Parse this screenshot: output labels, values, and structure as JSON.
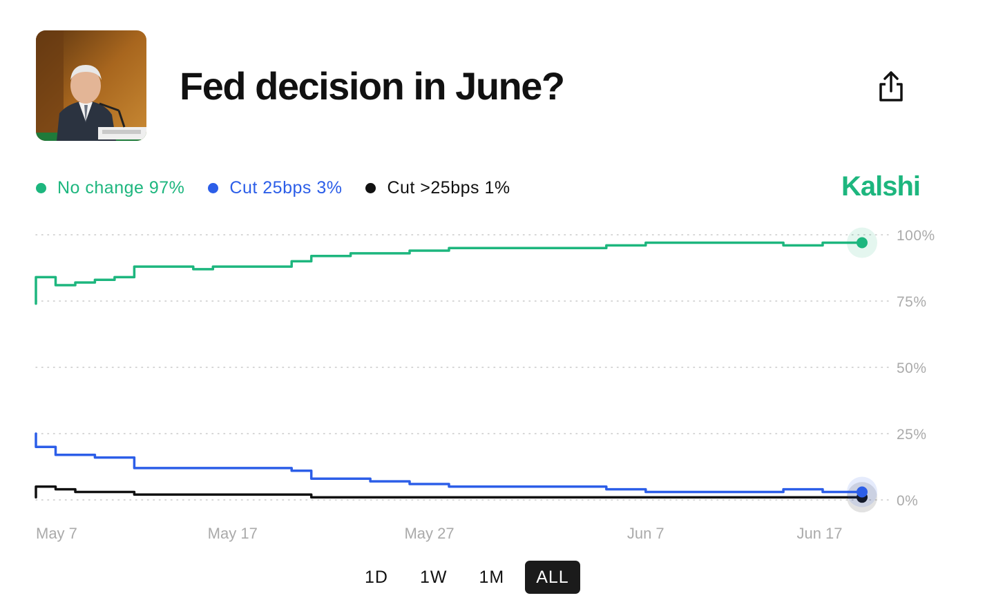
{
  "header": {
    "title": "Fed decision in June?",
    "brand": "Kalshi"
  },
  "colors": {
    "no_change": "#1db67e",
    "cut_25": "#2c5ee8",
    "cut_gt25": "#111111",
    "brand": "#1db67e",
    "axis_text": "#aaaaaa",
    "grid": "#c8c8c8"
  },
  "legend": [
    {
      "label": "No change 97%",
      "color": "#1db67e"
    },
    {
      "label": "Cut 25bps 3%",
      "color": "#2c5ee8"
    },
    {
      "label": "Cut >25bps 1%",
      "color": "#111111"
    }
  ],
  "range_buttons": [
    {
      "label": "1D",
      "active": false
    },
    {
      "label": "1W",
      "active": false
    },
    {
      "label": "1M",
      "active": false
    },
    {
      "label": "ALL",
      "active": true
    }
  ],
  "chart_data": {
    "type": "line",
    "title": "",
    "xlabel": "",
    "ylabel": "",
    "x_ticks": [
      "May 7",
      "May 17",
      "May 27",
      "Jun 7",
      "Jun 17"
    ],
    "y_ticks": [
      "0%",
      "25%",
      "50%",
      "75%",
      "100%"
    ],
    "ylim": [
      0,
      100
    ],
    "xlim": [
      "2024-05-07",
      "2024-06-18"
    ],
    "grid": true,
    "grid_style": "dotted",
    "legend_position": "top-left",
    "series": [
      {
        "name": "No change",
        "color": "#1db67e",
        "points": [
          [
            "2024-05-07",
            74
          ],
          [
            "2024-05-07",
            84
          ],
          [
            "2024-05-08",
            81
          ],
          [
            "2024-05-09",
            82
          ],
          [
            "2024-05-10",
            83
          ],
          [
            "2024-05-11",
            84
          ],
          [
            "2024-05-12",
            84
          ],
          [
            "2024-05-12",
            88
          ],
          [
            "2024-05-13",
            88
          ],
          [
            "2024-05-14",
            88
          ],
          [
            "2024-05-15",
            87
          ],
          [
            "2024-05-16",
            88
          ],
          [
            "2024-05-17",
            88
          ],
          [
            "2024-05-18",
            88
          ],
          [
            "2024-05-19",
            88
          ],
          [
            "2024-05-20",
            89
          ],
          [
            "2024-05-20",
            90
          ],
          [
            "2024-05-21",
            90
          ],
          [
            "2024-05-21",
            92
          ],
          [
            "2024-05-22",
            92
          ],
          [
            "2024-05-23",
            93
          ],
          [
            "2024-05-24",
            93
          ],
          [
            "2024-05-25",
            93
          ],
          [
            "2024-05-26",
            94
          ],
          [
            "2024-05-27",
            94
          ],
          [
            "2024-05-28",
            95
          ],
          [
            "2024-05-29",
            95
          ],
          [
            "2024-05-30",
            95
          ],
          [
            "2024-05-31",
            95
          ],
          [
            "2024-06-01",
            95
          ],
          [
            "2024-06-02",
            95
          ],
          [
            "2024-06-03",
            95
          ],
          [
            "2024-06-04",
            95
          ],
          [
            "2024-06-05",
            96
          ],
          [
            "2024-06-06",
            96
          ],
          [
            "2024-06-07",
            97
          ],
          [
            "2024-06-08",
            97
          ],
          [
            "2024-06-09",
            97
          ],
          [
            "2024-06-10",
            97
          ],
          [
            "2024-06-11",
            97
          ],
          [
            "2024-06-12",
            97
          ],
          [
            "2024-06-13",
            97
          ],
          [
            "2024-06-14",
            96
          ],
          [
            "2024-06-15",
            96
          ],
          [
            "2024-06-16",
            97
          ],
          [
            "2024-06-17",
            97
          ],
          [
            "2024-06-18",
            97
          ]
        ]
      },
      {
        "name": "Cut 25bps",
        "color": "#2c5ee8",
        "points": [
          [
            "2024-05-07",
            25
          ],
          [
            "2024-05-07",
            20
          ],
          [
            "2024-05-08",
            17
          ],
          [
            "2024-05-09",
            17
          ],
          [
            "2024-05-10",
            16
          ],
          [
            "2024-05-11",
            16
          ],
          [
            "2024-05-12",
            16
          ],
          [
            "2024-05-12",
            12
          ],
          [
            "2024-05-13",
            12
          ],
          [
            "2024-05-14",
            12
          ],
          [
            "2024-05-15",
            12
          ],
          [
            "2024-05-16",
            12
          ],
          [
            "2024-05-17",
            12
          ],
          [
            "2024-05-18",
            12
          ],
          [
            "2024-05-19",
            12
          ],
          [
            "2024-05-20",
            11
          ],
          [
            "2024-05-21",
            11
          ],
          [
            "2024-05-21",
            8
          ],
          [
            "2024-05-22",
            8
          ],
          [
            "2024-05-23",
            8
          ],
          [
            "2024-05-24",
            7
          ],
          [
            "2024-05-25",
            7
          ],
          [
            "2024-05-26",
            6
          ],
          [
            "2024-05-27",
            6
          ],
          [
            "2024-05-28",
            5
          ],
          [
            "2024-05-29",
            5
          ],
          [
            "2024-05-30",
            5
          ],
          [
            "2024-05-31",
            5
          ],
          [
            "2024-06-01",
            5
          ],
          [
            "2024-06-02",
            5
          ],
          [
            "2024-06-03",
            5
          ],
          [
            "2024-06-04",
            5
          ],
          [
            "2024-06-05",
            4
          ],
          [
            "2024-06-06",
            4
          ],
          [
            "2024-06-07",
            3
          ],
          [
            "2024-06-08",
            3
          ],
          [
            "2024-06-09",
            3
          ],
          [
            "2024-06-10",
            3
          ],
          [
            "2024-06-11",
            3
          ],
          [
            "2024-06-12",
            3
          ],
          [
            "2024-06-13",
            3
          ],
          [
            "2024-06-14",
            4
          ],
          [
            "2024-06-15",
            4
          ],
          [
            "2024-06-16",
            3
          ],
          [
            "2024-06-17",
            3
          ],
          [
            "2024-06-18",
            3
          ]
        ]
      },
      {
        "name": "Cut >25bps",
        "color": "#111111",
        "points": [
          [
            "2024-05-07",
            1
          ],
          [
            "2024-05-07",
            5
          ],
          [
            "2024-05-08",
            4
          ],
          [
            "2024-05-09",
            3
          ],
          [
            "2024-05-10",
            3
          ],
          [
            "2024-05-11",
            3
          ],
          [
            "2024-05-12",
            3
          ],
          [
            "2024-05-12",
            2
          ],
          [
            "2024-05-13",
            2
          ],
          [
            "2024-05-14",
            2
          ],
          [
            "2024-05-15",
            2
          ],
          [
            "2024-05-16",
            2
          ],
          [
            "2024-05-17",
            2
          ],
          [
            "2024-05-18",
            2
          ],
          [
            "2024-05-19",
            2
          ],
          [
            "2024-05-20",
            2
          ],
          [
            "2024-05-21",
            2
          ],
          [
            "2024-05-21",
            1
          ],
          [
            "2024-05-24",
            1
          ],
          [
            "2024-05-27",
            1
          ],
          [
            "2024-05-31",
            1
          ],
          [
            "2024-06-04",
            1
          ],
          [
            "2024-06-07",
            1
          ],
          [
            "2024-06-11",
            1
          ],
          [
            "2024-06-14",
            1
          ],
          [
            "2024-06-18",
            1
          ]
        ]
      }
    ]
  }
}
